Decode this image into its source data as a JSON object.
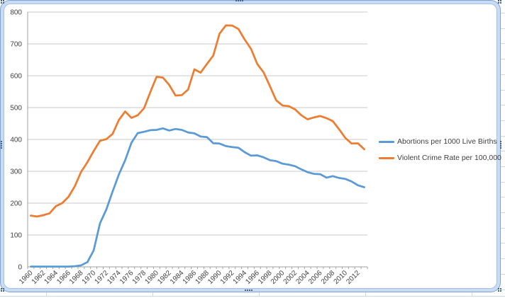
{
  "chart_data": {
    "type": "line",
    "title": "",
    "xlabel": "",
    "ylabel": "",
    "ylim": [
      0,
      800
    ],
    "y_ticks": [
      0,
      100,
      200,
      300,
      400,
      500,
      600,
      700,
      800
    ],
    "x_tick_labels": [
      "1960",
      "1962",
      "1964",
      "1966",
      "1968",
      "1970",
      "1972",
      "1974",
      "1976",
      "1978",
      "1980",
      "1982",
      "1984",
      "1986",
      "1988",
      "1990",
      "1992",
      "1994",
      "1996",
      "1998",
      "2000",
      "2002",
      "2004",
      "2006",
      "2008",
      "2010",
      "2012"
    ],
    "grid": "horizontal-only",
    "legend_position": "right",
    "x": [
      1960,
      1961,
      1962,
      1963,
      1964,
      1965,
      1966,
      1967,
      1968,
      1969,
      1970,
      1971,
      1972,
      1973,
      1974,
      1975,
      1976,
      1977,
      1978,
      1979,
      1980,
      1981,
      1982,
      1983,
      1984,
      1985,
      1986,
      1987,
      1988,
      1989,
      1990,
      1991,
      1992,
      1993,
      1994,
      1995,
      1996,
      1997,
      1998,
      1999,
      2000,
      2001,
      2002,
      2003,
      2004,
      2005,
      2006,
      2007,
      2008,
      2009,
      2010,
      2011,
      2012,
      2013
    ],
    "series": [
      {
        "name": "Abortions per 1000 Live Births",
        "color": "#5B9BD5",
        "values": [
          1,
          1,
          1,
          1,
          1,
          1,
          1,
          2,
          5,
          15,
          52,
          137,
          180,
          237,
          290,
          335,
          390,
          420,
          424,
          429,
          430,
          435,
          428,
          433,
          430,
          422,
          419,
          409,
          407,
          388,
          387,
          379,
          376,
          374,
          360,
          349,
          350,
          344,
          335,
          332,
          324,
          321,
          316,
          306,
          297,
          292,
          291,
          280,
          285,
          279,
          276,
          268,
          256,
          250
        ]
      },
      {
        "name": "Violent Crime Rate per 100,000",
        "color": "#ED7D31",
        "values": [
          160.9,
          158.1,
          162.3,
          168.2,
          190.6,
          200.2,
          220,
          253.2,
          298.4,
          328.7,
          363.5,
          396,
          401,
          417.4,
          461.1,
          487.8,
          467.8,
          475.9,
          497.8,
          548.9,
          596.6,
          594.3,
          571.1,
          537.7,
          539.2,
          556.6,
          620.1,
          609.7,
          637.2,
          663.1,
          731.8,
          758.1,
          757.5,
          746.8,
          713.6,
          684.5,
          636.6,
          611,
          567.6,
          523,
          506.5,
          504.5,
          494.4,
          475.8,
          463.2,
          469,
          473.6,
          466.9,
          457.5,
          431.9,
          404.5,
          387.1,
          387.8,
          369.1
        ]
      }
    ]
  },
  "colors": {
    "gridline": "#c8c8c8",
    "axis": "#a0a0a0",
    "tick_text": "#3f3f3f",
    "frame_fill": "#c9dcf4",
    "frame_edge": "#7fa3d1",
    "handle_dot": "#44618e",
    "sheet_gridline": "#c9d9ec"
  }
}
